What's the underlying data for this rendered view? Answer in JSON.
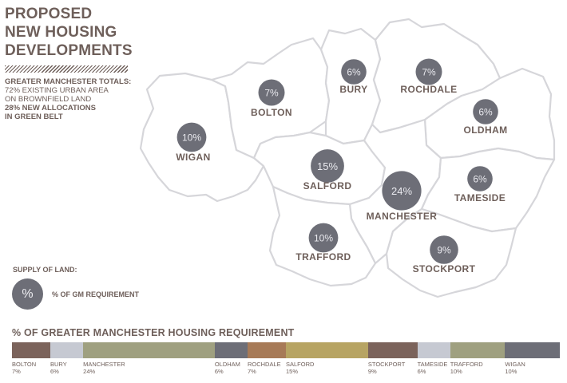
{
  "title_lines": [
    "PROPOSED",
    "NEW HOUSING",
    "DEVELOPMENTS"
  ],
  "totals": {
    "heading": "GREATER MANCHESTER TOTALS:",
    "line1": "72% EXISTING URBAN AREA",
    "line2": "ON BROWNFIELD LAND",
    "line3": "28% NEW ALLOCATIONS",
    "line4": "IN GREEN BELT"
  },
  "regions": [
    {
      "name": "WIGAN",
      "pct": "10%",
      "value": 10
    },
    {
      "name": "BOLTON",
      "pct": "7%",
      "value": 7
    },
    {
      "name": "BURY",
      "pct": "6%",
      "value": 6
    },
    {
      "name": "ROCHDALE",
      "pct": "7%",
      "value": 7
    },
    {
      "name": "OLDHAM",
      "pct": "6%",
      "value": 6
    },
    {
      "name": "SALFORD",
      "pct": "15%",
      "value": 15
    },
    {
      "name": "MANCHESTER",
      "pct": "24%",
      "value": 24
    },
    {
      "name": "TAMESIDE",
      "pct": "6%",
      "value": 6
    },
    {
      "name": "TRAFFORD",
      "pct": "10%",
      "value": 10
    },
    {
      "name": "STOCKPORT",
      "pct": "9%",
      "value": 9
    }
  ],
  "legend": {
    "supply_label": "SUPPLY OF LAND:",
    "symbol": "%",
    "text": "% OF GM REQUIREMENT"
  },
  "requirement": {
    "title": "% OF GREATER MANCHESTER HOUSING REQUIREMENT",
    "segments": [
      {
        "name": "BOLTON",
        "pct": "7%",
        "value": 7,
        "color": "#7b635b"
      },
      {
        "name": "BURY",
        "pct": "6%",
        "value": 6,
        "color": "#c6c9d2"
      },
      {
        "name": "MANCHESTER",
        "pct": "24%",
        "value": 24,
        "color": "#9fa080"
      },
      {
        "name": "OLDHAM",
        "pct": "6%",
        "value": 6,
        "color": "#6d6e77"
      },
      {
        "name": "ROCHDALE",
        "pct": "7%",
        "value": 7,
        "color": "#a77a57"
      },
      {
        "name": "SALFORD",
        "pct": "15%",
        "value": 15,
        "color": "#b7a463"
      },
      {
        "name": "STOCKPORT",
        "pct": "9%",
        "value": 9,
        "color": "#7b635b"
      },
      {
        "name": "TAMESIDE",
        "pct": "6%",
        "value": 6,
        "color": "#c6c9d2"
      },
      {
        "name": "TRAFFORD",
        "pct": "10%",
        "value": 10,
        "color": "#9fa080"
      },
      {
        "name": "WIGAN",
        "pct": "10%",
        "value": 10,
        "color": "#6d6e77"
      }
    ]
  }
}
